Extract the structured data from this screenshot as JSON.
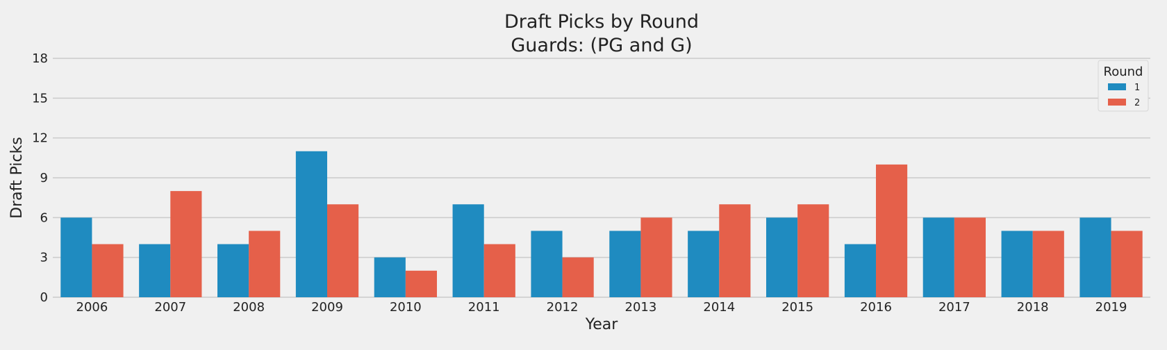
{
  "chart_data": {
    "type": "bar",
    "title": [
      "Draft Picks by Round",
      "Guards: (PG and G)"
    ],
    "xlabel": "Year",
    "ylabel": "Draft Picks",
    "categories": [
      "2006",
      "2007",
      "2008",
      "2009",
      "2010",
      "2011",
      "2012",
      "2013",
      "2014",
      "2015",
      "2016",
      "2017",
      "2018",
      "2019"
    ],
    "series": [
      {
        "name": "1",
        "values": [
          6,
          4,
          4,
          11,
          3,
          7,
          5,
          5,
          5,
          6,
          4,
          6,
          5,
          6
        ]
      },
      {
        "name": "2",
        "values": [
          4,
          8,
          5,
          7,
          2,
          4,
          3,
          6,
          7,
          7,
          10,
          6,
          5,
          5
        ]
      }
    ],
    "ylim": [
      0,
      18
    ],
    "yticks": [
      0,
      3,
      6,
      9,
      12,
      15,
      18
    ],
    "grid": "horizontal",
    "legend": {
      "title": "Round",
      "placement": "top-right"
    },
    "colors": {
      "series": [
        "#1f8bc0",
        "#e5604a"
      ],
      "background": "#f0f0f0",
      "grid": "#cbcbcb",
      "text": "#222222"
    }
  }
}
